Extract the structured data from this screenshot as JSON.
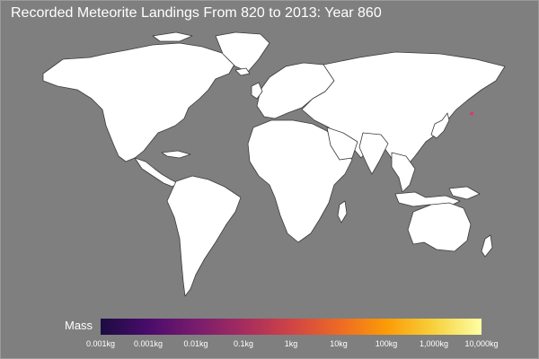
{
  "title": "Recorded Meteorite Landings From 820 to 2013: Year 860",
  "legend": {
    "label": "Mass",
    "gradient_colors": [
      "#1b0c41",
      "#4a0c6b",
      "#781c6d",
      "#a52c60",
      "#cf4446",
      "#ed6925",
      "#fb9b06",
      "#f7d13d",
      "#fcffa4"
    ],
    "ticks": [
      "0.001kg",
      "0.001kg",
      "0.01kg",
      "0.1kg",
      "1kg",
      "10kg",
      "100kg",
      "1,000kg",
      "10,000kg"
    ]
  },
  "colors": {
    "ocean": "#7f7f7f",
    "land": "#ffffff",
    "border": "#3a3a3a",
    "meteorite_marker": "#d0406a"
  },
  "meteorite_markers": [
    {
      "lon": 135,
      "lat": 34.6
    }
  ]
}
